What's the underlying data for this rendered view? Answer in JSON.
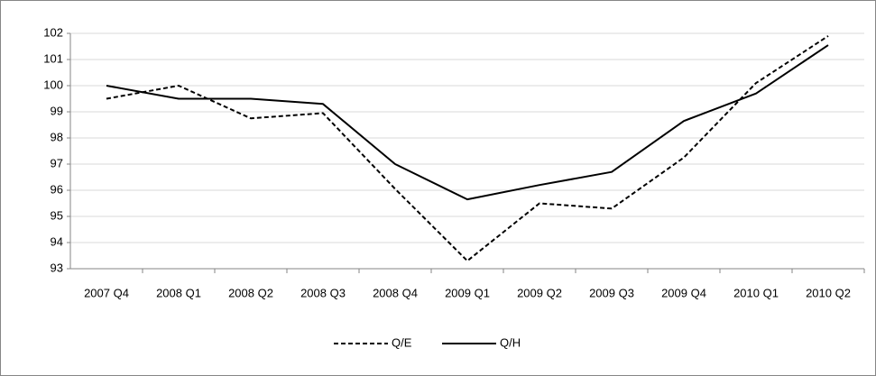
{
  "chart_data": {
    "type": "line",
    "categories": [
      "2007 Q4",
      "2008 Q1",
      "2008 Q2",
      "2008 Q3",
      "2008 Q4",
      "2009 Q1",
      "2009 Q2",
      "2009 Q3",
      "2009 Q4",
      "2010 Q1",
      "2010 Q2"
    ],
    "series": [
      {
        "name": "Q/E",
        "color": "#000000",
        "dashed": true,
        "values": [
          99.5,
          100.0,
          98.75,
          98.95,
          96.05,
          93.3,
          95.5,
          95.3,
          97.25,
          100.1,
          101.9
        ]
      },
      {
        "name": "Q/H",
        "color": "#000000",
        "dashed": false,
        "values": [
          100.0,
          99.5,
          99.5,
          99.3,
          97.0,
          95.65,
          96.2,
          96.7,
          98.65,
          99.7,
          101.55
        ]
      }
    ],
    "ylim": [
      93,
      102
    ],
    "yticks": [
      93,
      94,
      95,
      96,
      97,
      98,
      99,
      100,
      101,
      102
    ],
    "grid": true,
    "legend": "bottom"
  }
}
